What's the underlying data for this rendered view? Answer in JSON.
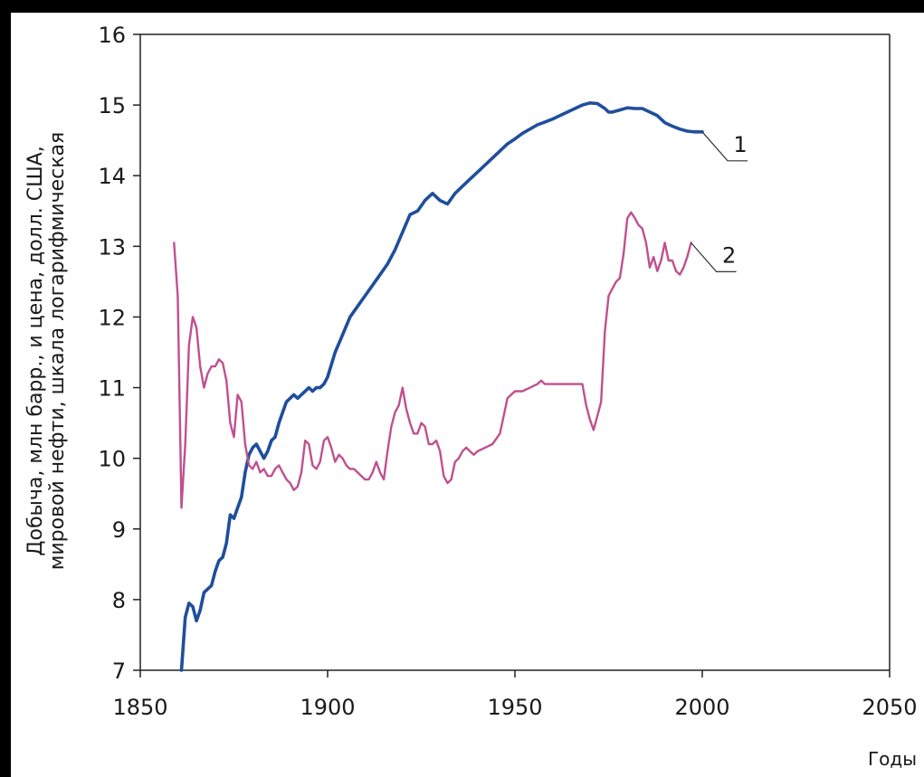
{
  "chart_data": {
    "type": "line",
    "title": "",
    "ylabel_line1": "Добыча, млн барр., и цена, долл. США,",
    "ylabel_line2": "мировой нефти, шкала логарифмическая",
    "xlabel": "Годы",
    "xlim": [
      1850,
      2050
    ],
    "ylim": [
      7,
      16
    ],
    "xticks": [
      1850,
      1900,
      1950,
      2000,
      2050
    ],
    "yticks": [
      7,
      8,
      9,
      10,
      11,
      12,
      13,
      14,
      15,
      16
    ],
    "grid": false,
    "series": [
      {
        "name": "1",
        "color": "#1f4e9c",
        "points": [
          [
            1861,
            7.0
          ],
          [
            1862,
            7.75
          ],
          [
            1863,
            7.95
          ],
          [
            1864,
            7.9
          ],
          [
            1865,
            7.7
          ],
          [
            1866,
            7.85
          ],
          [
            1867,
            8.1
          ],
          [
            1868,
            8.15
          ],
          [
            1869,
            8.2
          ],
          [
            1870,
            8.4
          ],
          [
            1871,
            8.55
          ],
          [
            1872,
            8.6
          ],
          [
            1873,
            8.8
          ],
          [
            1874,
            9.2
          ],
          [
            1875,
            9.15
          ],
          [
            1876,
            9.3
          ],
          [
            1877,
            9.45
          ],
          [
            1878,
            9.8
          ],
          [
            1879,
            10.05
          ],
          [
            1880,
            10.15
          ],
          [
            1881,
            10.2
          ],
          [
            1882,
            10.1
          ],
          [
            1883,
            10.0
          ],
          [
            1884,
            10.1
          ],
          [
            1885,
            10.25
          ],
          [
            1886,
            10.3
          ],
          [
            1887,
            10.5
          ],
          [
            1888,
            10.65
          ],
          [
            1889,
            10.8
          ],
          [
            1890,
            10.85
          ],
          [
            1891,
            10.9
          ],
          [
            1892,
            10.85
          ],
          [
            1893,
            10.9
          ],
          [
            1894,
            10.95
          ],
          [
            1895,
            11.0
          ],
          [
            1896,
            10.95
          ],
          [
            1897,
            11.0
          ],
          [
            1898,
            11.0
          ],
          [
            1899,
            11.05
          ],
          [
            1900,
            11.15
          ],
          [
            1902,
            11.5
          ],
          [
            1904,
            11.75
          ],
          [
            1906,
            12.0
          ],
          [
            1908,
            12.15
          ],
          [
            1910,
            12.3
          ],
          [
            1912,
            12.45
          ],
          [
            1914,
            12.6
          ],
          [
            1916,
            12.75
          ],
          [
            1918,
            12.95
          ],
          [
            1920,
            13.2
          ],
          [
            1922,
            13.45
          ],
          [
            1924,
            13.5
          ],
          [
            1926,
            13.65
          ],
          [
            1928,
            13.75
          ],
          [
            1930,
            13.65
          ],
          [
            1932,
            13.6
          ],
          [
            1934,
            13.75
          ],
          [
            1936,
            13.85
          ],
          [
            1938,
            13.95
          ],
          [
            1940,
            14.05
          ],
          [
            1942,
            14.15
          ],
          [
            1944,
            14.25
          ],
          [
            1946,
            14.35
          ],
          [
            1948,
            14.45
          ],
          [
            1950,
            14.52
          ],
          [
            1952,
            14.6
          ],
          [
            1954,
            14.66
          ],
          [
            1956,
            14.72
          ],
          [
            1958,
            14.76
          ],
          [
            1960,
            14.8
          ],
          [
            1962,
            14.85
          ],
          [
            1964,
            14.9
          ],
          [
            1966,
            14.95
          ],
          [
            1968,
            15.0
          ],
          [
            1970,
            15.03
          ],
          [
            1972,
            15.02
          ],
          [
            1974,
            14.95
          ],
          [
            1975,
            14.9
          ],
          [
            1976,
            14.9
          ],
          [
            1978,
            14.93
          ],
          [
            1980,
            14.96
          ],
          [
            1982,
            14.95
          ],
          [
            1984,
            14.95
          ],
          [
            1986,
            14.9
          ],
          [
            1988,
            14.85
          ],
          [
            1990,
            14.75
          ],
          [
            1992,
            14.7
          ],
          [
            1994,
            14.66
          ],
          [
            1996,
            14.63
          ],
          [
            1998,
            14.62
          ],
          [
            2000,
            14.62
          ]
        ]
      },
      {
        "name": "2",
        "color": "#c0508f",
        "points": [
          [
            1859,
            13.05
          ],
          [
            1860,
            12.3
          ],
          [
            1860.6,
            10.5
          ],
          [
            1861,
            9.3
          ],
          [
            1862,
            10.2
          ],
          [
            1863,
            11.6
          ],
          [
            1864,
            12.0
          ],
          [
            1865,
            11.85
          ],
          [
            1866,
            11.3
          ],
          [
            1867,
            11.0
          ],
          [
            1868,
            11.2
          ],
          [
            1869,
            11.3
          ],
          [
            1870,
            11.3
          ],
          [
            1871,
            11.4
          ],
          [
            1872,
            11.35
          ],
          [
            1873,
            11.1
          ],
          [
            1874,
            10.5
          ],
          [
            1875,
            10.3
          ],
          [
            1876,
            10.9
          ],
          [
            1877,
            10.8
          ],
          [
            1878,
            10.2
          ],
          [
            1879,
            9.9
          ],
          [
            1880,
            9.85
          ],
          [
            1881,
            9.95
          ],
          [
            1882,
            9.8
          ],
          [
            1883,
            9.85
          ],
          [
            1884,
            9.75
          ],
          [
            1885,
            9.75
          ],
          [
            1886,
            9.85
          ],
          [
            1887,
            9.9
          ],
          [
            1888,
            9.8
          ],
          [
            1889,
            9.7
          ],
          [
            1890,
            9.65
          ],
          [
            1891,
            9.55
          ],
          [
            1892,
            9.6
          ],
          [
            1893,
            9.8
          ],
          [
            1894,
            10.25
          ],
          [
            1895,
            10.2
          ],
          [
            1896,
            9.9
          ],
          [
            1897,
            9.85
          ],
          [
            1898,
            9.95
          ],
          [
            1899,
            10.25
          ],
          [
            1900,
            10.3
          ],
          [
            1901,
            10.15
          ],
          [
            1902,
            9.95
          ],
          [
            1903,
            10.05
          ],
          [
            1904,
            10.0
          ],
          [
            1905,
            9.9
          ],
          [
            1906,
            9.85
          ],
          [
            1907,
            9.85
          ],
          [
            1908,
            9.8
          ],
          [
            1909,
            9.75
          ],
          [
            1910,
            9.7
          ],
          [
            1911,
            9.7
          ],
          [
            1912,
            9.8
          ],
          [
            1913,
            9.95
          ],
          [
            1914,
            9.8
          ],
          [
            1915,
            9.7
          ],
          [
            1916,
            10.1
          ],
          [
            1917,
            10.45
          ],
          [
            1918,
            10.65
          ],
          [
            1919,
            10.75
          ],
          [
            1920,
            11.0
          ],
          [
            1921,
            10.7
          ],
          [
            1922,
            10.5
          ],
          [
            1923,
            10.35
          ],
          [
            1924,
            10.35
          ],
          [
            1925,
            10.5
          ],
          [
            1926,
            10.45
          ],
          [
            1927,
            10.2
          ],
          [
            1928,
            10.2
          ],
          [
            1929,
            10.25
          ],
          [
            1930,
            10.1
          ],
          [
            1931,
            9.75
          ],
          [
            1932,
            9.65
          ],
          [
            1933,
            9.7
          ],
          [
            1934,
            9.95
          ],
          [
            1935,
            10.0
          ],
          [
            1936,
            10.1
          ],
          [
            1937,
            10.15
          ],
          [
            1938,
            10.1
          ],
          [
            1939,
            10.05
          ],
          [
            1940,
            10.1
          ],
          [
            1942,
            10.15
          ],
          [
            1944,
            10.2
          ],
          [
            1946,
            10.35
          ],
          [
            1947,
            10.6
          ],
          [
            1948,
            10.85
          ],
          [
            1950,
            10.95
          ],
          [
            1952,
            10.95
          ],
          [
            1954,
            11.0
          ],
          [
            1956,
            11.05
          ],
          [
            1957,
            11.1
          ],
          [
            1958,
            11.05
          ],
          [
            1960,
            11.05
          ],
          [
            1962,
            11.05
          ],
          [
            1964,
            11.05
          ],
          [
            1966,
            11.05
          ],
          [
            1968,
            11.05
          ],
          [
            1969,
            10.75
          ],
          [
            1970,
            10.55
          ],
          [
            1971,
            10.4
          ],
          [
            1972,
            10.6
          ],
          [
            1973,
            10.8
          ],
          [
            1974,
            11.8
          ],
          [
            1975,
            12.3
          ],
          [
            1976,
            12.4
          ],
          [
            1977,
            12.5
          ],
          [
            1978,
            12.55
          ],
          [
            1979,
            12.9
          ],
          [
            1980,
            13.4
          ],
          [
            1981,
            13.48
          ],
          [
            1982,
            13.4
          ],
          [
            1983,
            13.3
          ],
          [
            1984,
            13.25
          ],
          [
            1985,
            13.05
          ],
          [
            1986,
            12.7
          ],
          [
            1987,
            12.85
          ],
          [
            1988,
            12.65
          ],
          [
            1989,
            12.8
          ],
          [
            1990,
            13.05
          ],
          [
            1991,
            12.8
          ],
          [
            1992,
            12.8
          ],
          [
            1993,
            12.65
          ],
          [
            1994,
            12.6
          ],
          [
            1995,
            12.7
          ],
          [
            1996,
            12.85
          ],
          [
            1997,
            13.05
          ]
        ]
      }
    ]
  }
}
